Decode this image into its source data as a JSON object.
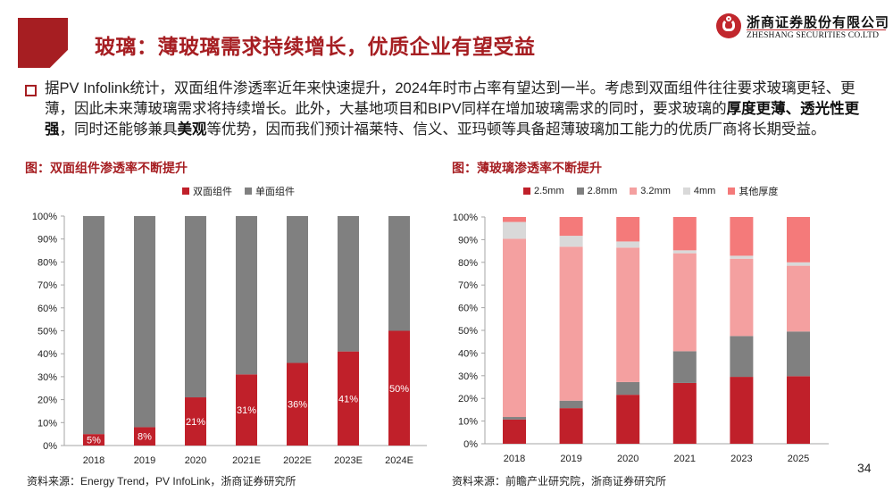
{
  "header": {
    "title": "玻璃：薄玻璃需求持续增长，优质企业有望受益",
    "logo_cn": "浙商证券股份有限公司",
    "logo_en": "ZHESHANG SECURITIES CO.LTD"
  },
  "body": {
    "segments": [
      {
        "text": "据PV Infolink统计，双面组件渗透率近年来快速提升，2024年时市占率有望达到一半。考虑到双面组件往往要求玻璃更轻、更薄，因此未来薄玻璃需求将持续增长。此外，大基地项目和BIPV同样在增加玻璃需求的同时，要求玻璃的",
        "bold": false
      },
      {
        "text": "厚度更薄、透光性更强",
        "bold": true
      },
      {
        "text": "，同时还能够兼具",
        "bold": false
      },
      {
        "text": "美观",
        "bold": true
      },
      {
        "text": "等优势，因而我们预计福莱特、信义、亚玛顿等具备超薄玻璃加工能力的优质厂商将长期受益。",
        "bold": false
      }
    ]
  },
  "page_number": "34",
  "chart_data": [
    {
      "type": "bar",
      "stacked": true,
      "title": "图：双面组件渗透率不断提升",
      "categories": [
        "2018",
        "2019",
        "2020",
        "2021E",
        "2022E",
        "2023E",
        "2024E"
      ],
      "series": [
        {
          "name": "双面组件",
          "color": "#c0202a",
          "values": [
            5,
            8,
            21,
            31,
            36,
            41,
            50
          ],
          "labels": [
            "5%",
            "8%",
            "21%",
            "31%",
            "36%",
            "41%",
            "50%"
          ]
        },
        {
          "name": "单面组件",
          "color": "#808080",
          "values": [
            95,
            92,
            79,
            69,
            64,
            59,
            50
          ]
        }
      ],
      "yticks": [
        "0%",
        "10%",
        "20%",
        "30%",
        "40%",
        "50%",
        "60%",
        "70%",
        "80%",
        "90%",
        "100%"
      ],
      "ylim": [
        0,
        100
      ],
      "xlabel": "",
      "ylabel": "",
      "legend": "top-center",
      "grid": false,
      "source": "资料来源：Energy Trend，PV InfoLink，浙商证券研究所"
    },
    {
      "type": "bar",
      "stacked": true,
      "title": "图：薄玻璃渗透率不断提升",
      "categories": [
        "2018",
        "2019",
        "2020",
        "2021",
        "2023",
        "2025"
      ],
      "series": [
        {
          "name": "2.5mm",
          "color": "#c0202a",
          "values": [
            10.7,
            15.7,
            21.6,
            26.8,
            29.5,
            29.8
          ]
        },
        {
          "name": "2.8mm",
          "color": "#808080",
          "values": [
            1.1,
            3.3,
            5.6,
            14.0,
            18.0,
            19.7
          ]
        },
        {
          "name": "3.2mm",
          "color": "#f4a0a0",
          "values": [
            78.6,
            67.9,
            59.3,
            43.2,
            34.1,
            29.0
          ]
        },
        {
          "name": "4mm",
          "color": "#d9d9d9",
          "values": [
            7.4,
            4.8,
            2.7,
            1.3,
            1.3,
            1.5
          ]
        },
        {
          "name": "其他厚度",
          "color": "#f47a7a",
          "values": [
            2.2,
            8.3,
            10.8,
            14.7,
            17.1,
            20.0
          ]
        }
      ],
      "yticks": [
        "0%",
        "10%",
        "20%",
        "30%",
        "40%",
        "50%",
        "60%",
        "70%",
        "80%",
        "90%",
        "100%"
      ],
      "ylim": [
        0,
        100
      ],
      "xlabel": "",
      "ylabel": "",
      "legend": "top-center",
      "grid": false,
      "source": "资料来源：前瞻产业研究院，浙商证券研究所"
    }
  ]
}
